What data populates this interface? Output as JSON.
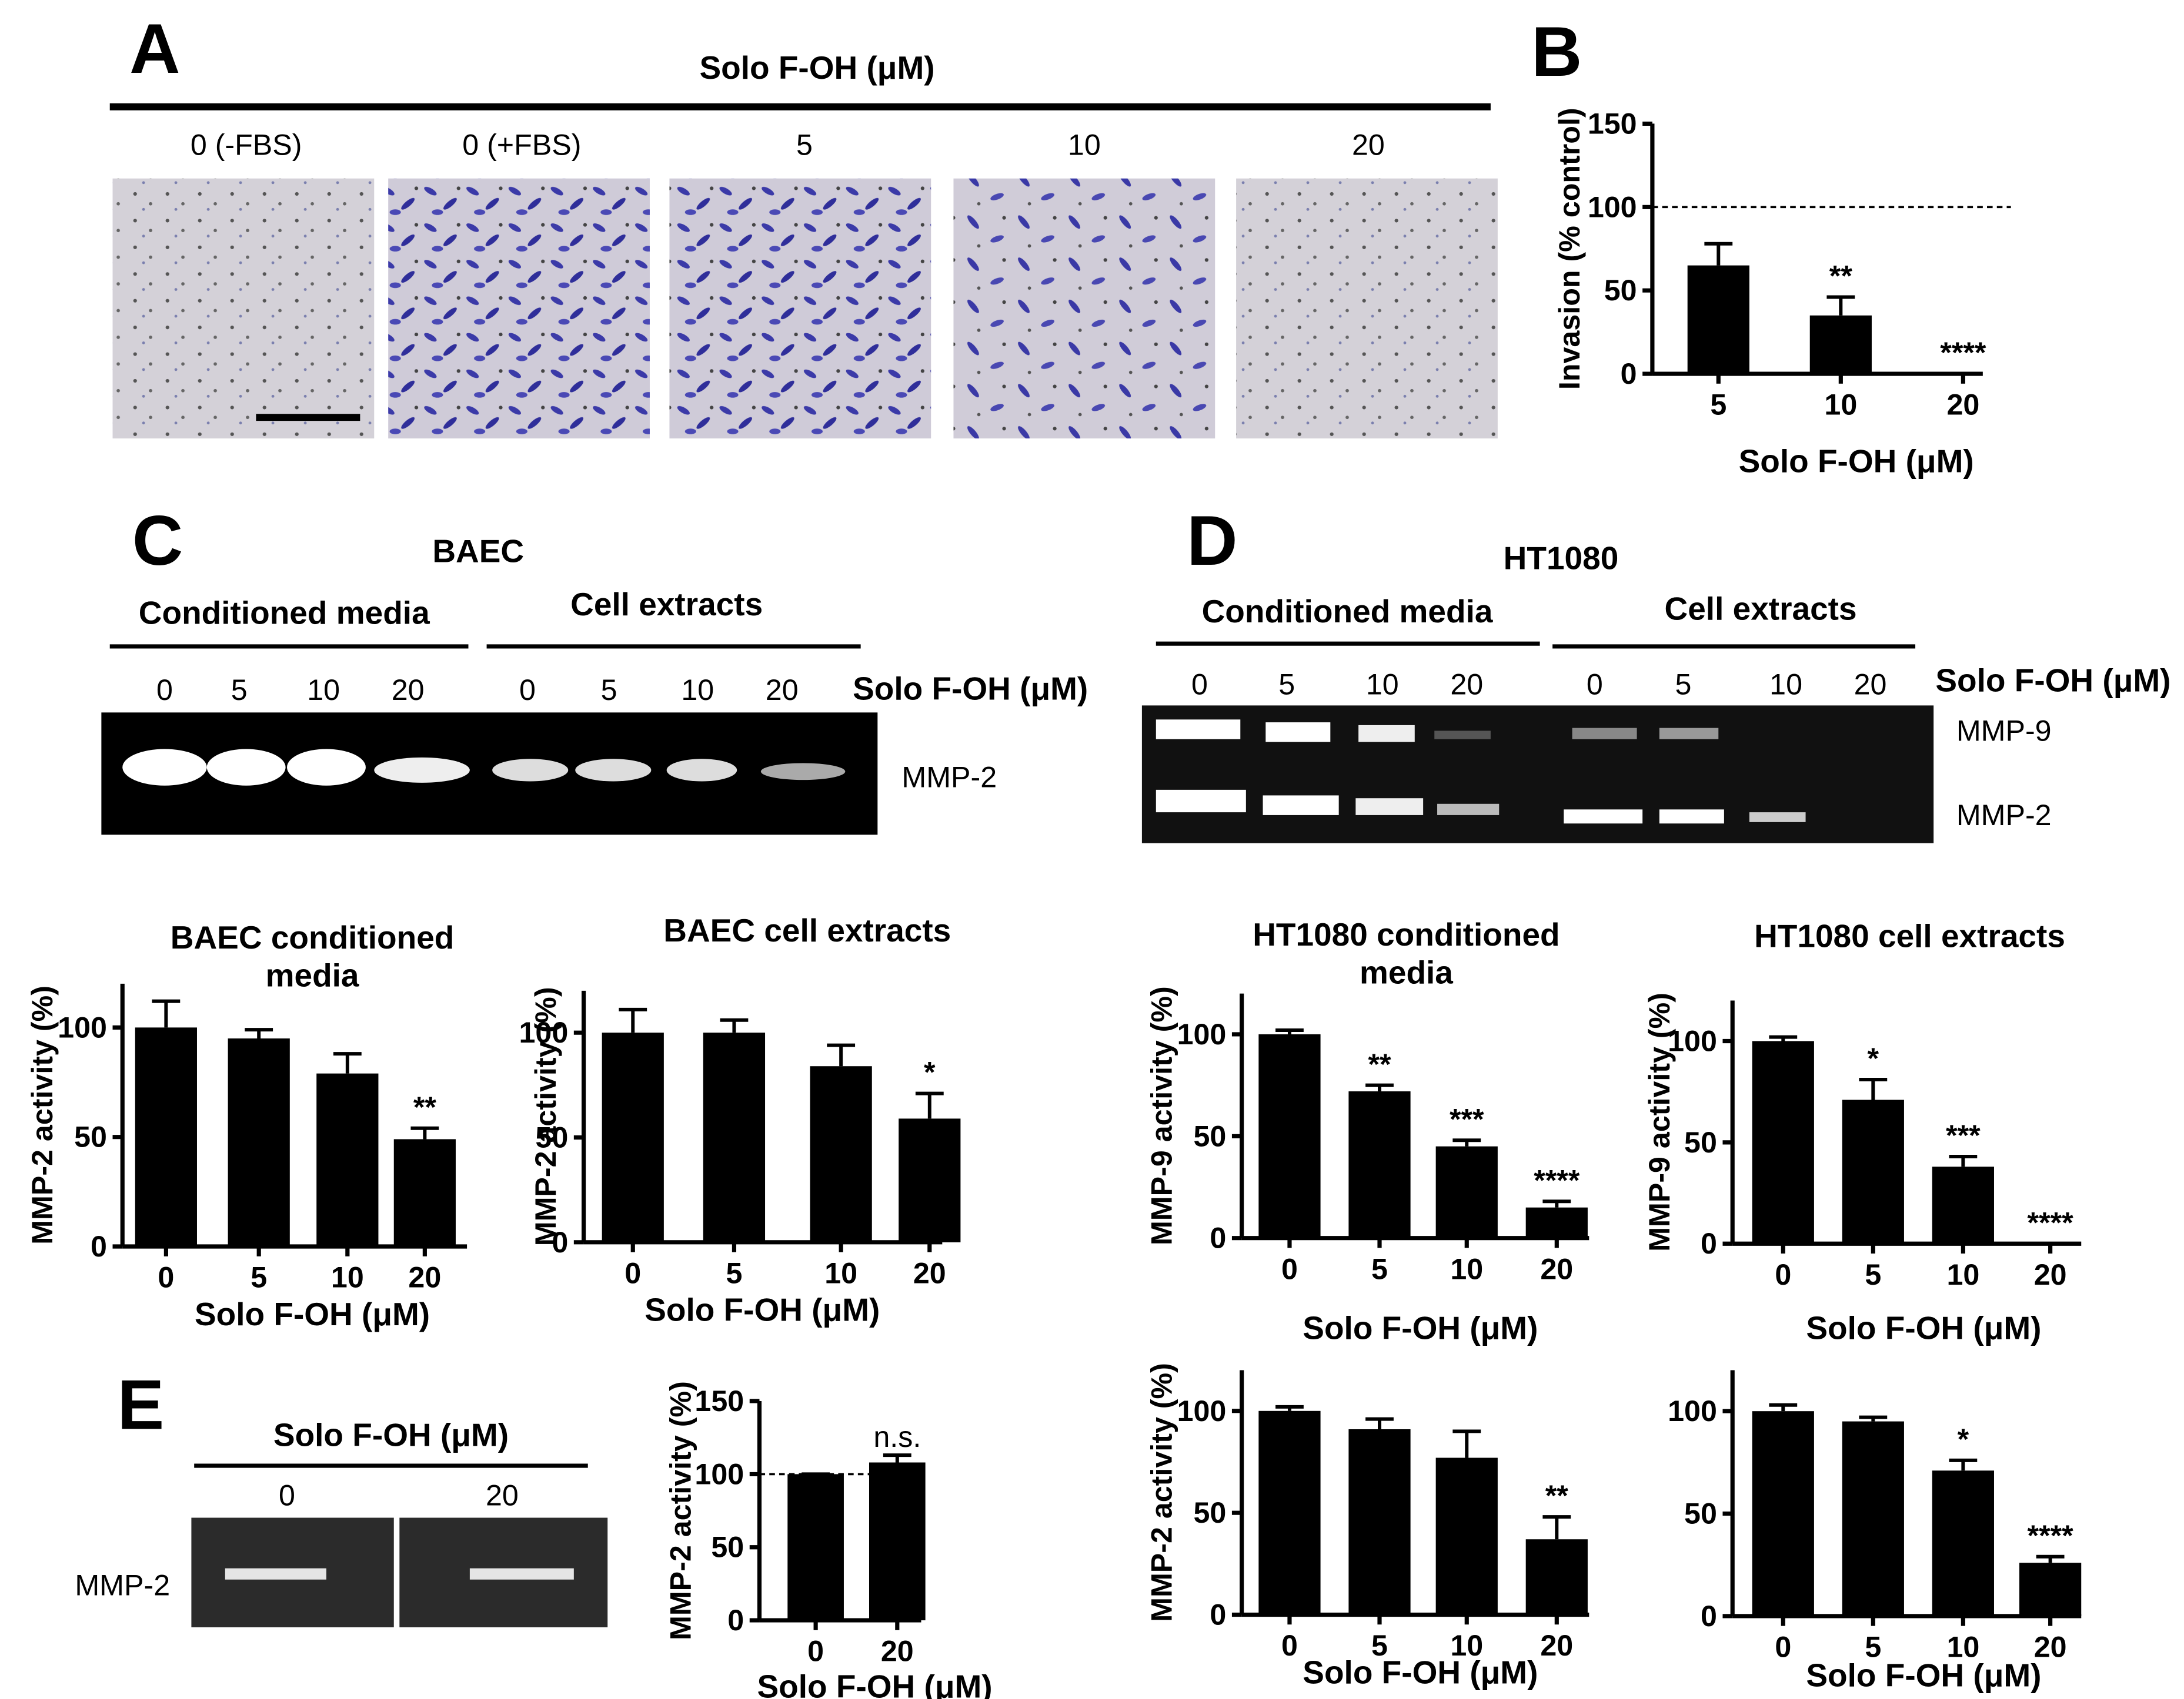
{
  "figure": {
    "panel_A": {
      "letter": "A",
      "treatment": "Solo F-OH (μM)",
      "conditions": [
        "0 (-FBS)",
        "0 (+FBS)",
        "5",
        "10",
        "20"
      ]
    },
    "panel_B": {
      "letter": "B"
    },
    "panel_C": {
      "letter": "C",
      "cell_line": "BAEC",
      "groups": [
        "Conditioned media",
        "Cell extracts"
      ],
      "lanes": [
        "0",
        "5",
        "10",
        "20",
        "0",
        "5",
        "10",
        "20"
      ],
      "treatment": "Solo F-OH (μM)",
      "bands": [
        "MMP-2"
      ]
    },
    "panel_D": {
      "letter": "D",
      "cell_line": "HT1080",
      "groups": [
        "Conditioned media",
        "Cell extracts"
      ],
      "lanes": [
        "0",
        "5",
        "10",
        "20",
        "0",
        "5",
        "10",
        "20"
      ],
      "treatment": "Solo F-OH (μM)",
      "bands": [
        "MMP-9",
        "MMP-2"
      ]
    },
    "panel_E": {
      "letter": "E",
      "treatment": "Solo F-OH (μM)",
      "lanes": [
        "0",
        "20"
      ],
      "bands": [
        "MMP-2"
      ]
    }
  },
  "chart_data": [
    {
      "type": "bar",
      "y_label": "Invasion (% control)",
      "x_label": "Solo F-OH (μM)",
      "categories": [
        "5",
        "10",
        "20"
      ],
      "values": [
        65,
        35,
        0
      ],
      "errors": [
        13,
        11,
        0
      ],
      "annotations": [
        null,
        "**",
        "****"
      ],
      "reference_line": 100,
      "ylim": [
        0,
        150
      ],
      "yticks": [
        0,
        50,
        100,
        150
      ],
      "color": "#000000"
    },
    {
      "type": "bar",
      "title": "BAEC conditioned media",
      "y_label": "MMP-2 activity (%)",
      "x_label": "Solo F-OH (μM)",
      "categories": [
        "0",
        "5",
        "10",
        "20"
      ],
      "values": [
        100,
        95,
        79,
        49
      ],
      "errors": [
        12,
        4,
        9,
        5
      ],
      "annotations": [
        null,
        null,
        null,
        "**"
      ],
      "ylim": [
        0,
        120
      ],
      "yticks": [
        0,
        50,
        100
      ],
      "color": "#000000"
    },
    {
      "type": "bar",
      "title": "BAEC cell extracts",
      "y_label": "MMP-2 activity (%)",
      "x_label": "Solo F-OH (μM)",
      "categories": [
        "0",
        "5",
        "10",
        "20"
      ],
      "values": [
        100,
        100,
        84,
        59
      ],
      "errors": [
        11,
        6,
        10,
        12
      ],
      "annotations": [
        null,
        null,
        null,
        "*"
      ],
      "ylim": [
        0,
        120
      ],
      "yticks": [
        0,
        50,
        100
      ],
      "color": "#000000"
    },
    {
      "type": "bar",
      "title": "HT1080 conditioned media",
      "y_label": "MMP-9 activity (%)",
      "x_label": "Solo F-OH (μM)",
      "categories": [
        "0",
        "5",
        "10",
        "20"
      ],
      "values": [
        100,
        72,
        45,
        15
      ],
      "errors": [
        2,
        3,
        3,
        3
      ],
      "annotations": [
        null,
        "**",
        "***",
        "****"
      ],
      "ylim": [
        0,
        120
      ],
      "yticks": [
        0,
        50,
        100
      ],
      "color": "#000000"
    },
    {
      "type": "bar",
      "title": "HT1080 cell extracts",
      "y_label": "MMP-9 activity (%)",
      "x_label": "Solo F-OH (μM)",
      "categories": [
        "0",
        "5",
        "10",
        "20"
      ],
      "values": [
        100,
        71,
        38,
        0
      ],
      "errors": [
        2,
        10,
        5,
        0
      ],
      "annotations": [
        null,
        "*",
        "***",
        "****"
      ],
      "ylim": [
        0,
        120
      ],
      "yticks": [
        0,
        50,
        100
      ],
      "color": "#000000"
    },
    {
      "type": "bar",
      "y_label": "MMP-2 activity (%)",
      "x_label": "Solo F-OH (μM)",
      "categories": [
        "0",
        "5",
        "10",
        "20"
      ],
      "values": [
        100,
        91,
        77,
        37
      ],
      "errors": [
        2,
        5,
        13,
        11
      ],
      "annotations": [
        null,
        null,
        null,
        "**"
      ],
      "ylim": [
        0,
        120
      ],
      "yticks": [
        0,
        50,
        100
      ],
      "color": "#000000"
    },
    {
      "type": "bar",
      "x_label": "Solo F-OH (μM)",
      "categories": [
        "0",
        "5",
        "10",
        "20"
      ],
      "values": [
        100,
        95,
        71,
        26
      ],
      "errors": [
        3,
        2,
        5,
        3
      ],
      "annotations": [
        null,
        null,
        "*",
        "****"
      ],
      "ylim": [
        0,
        120
      ],
      "yticks": [
        0,
        50,
        100
      ],
      "color": "#000000"
    },
    {
      "type": "bar",
      "y_label": "MMP-2 activity (%)",
      "x_label": "Solo F-OH (μM)",
      "categories": [
        "0",
        "20"
      ],
      "values": [
        100,
        108
      ],
      "errors": [
        0,
        5
      ],
      "annotations": [
        null,
        "n.s."
      ],
      "reference_line": 100,
      "ylim": [
        0,
        150
      ],
      "yticks": [
        0,
        50,
        100,
        150
      ],
      "color": "#000000"
    }
  ]
}
